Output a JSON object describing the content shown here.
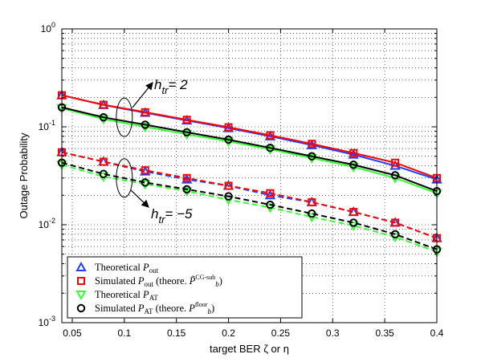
{
  "chart_data": {
    "type": "line",
    "xlabel": "target BER ζ or η",
    "ylabel": "Outage Probability",
    "xlim": [
      0.04,
      0.4
    ],
    "ylim": [
      0.001,
      1
    ],
    "yscale": "log",
    "grid": true,
    "x_ticks": [
      "0.05",
      "0.1",
      "0.15",
      "0.2",
      "0.25",
      "0.3",
      "0.35",
      "0.4"
    ],
    "x_tick_values": [
      0.05,
      0.1,
      0.15,
      0.2,
      0.25,
      0.3,
      0.35,
      0.4
    ],
    "y_ticks": [
      {
        "base": "10",
        "exp": "-3",
        "value": 0.001
      },
      {
        "base": "10",
        "exp": "-2",
        "value": 0.01
      },
      {
        "base": "10",
        "exp": "-1",
        "value": 0.1
      },
      {
        "base": "10",
        "exp": "0",
        "value": 1
      }
    ],
    "x": [
      0.04,
      0.08,
      0.12,
      0.16,
      0.2,
      0.24,
      0.28,
      0.32,
      0.36,
      0.4
    ],
    "series": [
      {
        "name": "Theoretical P_out",
        "group": "h_tr = 2",
        "color": "#1f3fff",
        "marker": "triangle-up",
        "line": "solid",
        "values": [
          0.21,
          0.167,
          0.139,
          0.116,
          0.097,
          0.08,
          0.065,
          0.052,
          0.04,
          0.029
        ]
      },
      {
        "name": "Simulated P_out (theore. P_b^CG-sub)",
        "group": "h_tr = 2",
        "color": "#ff0000",
        "marker": "square",
        "line": "solid",
        "values": [
          0.21,
          0.168,
          0.141,
          0.118,
          0.099,
          0.082,
          0.067,
          0.054,
          0.043,
          0.03
        ]
      },
      {
        "name": "Theoretical P_AT",
        "group": "h_tr = 2",
        "color": "#33ff33",
        "marker": "triangle-down",
        "line": "solid",
        "values": [
          0.155,
          0.12,
          0.1,
          0.084,
          0.071,
          0.059,
          0.048,
          0.039,
          0.03,
          0.021
        ]
      },
      {
        "name": "Simulated P_AT (theore. P_b^floor)",
        "group": "h_tr = 2",
        "color": "#000000",
        "marker": "circle",
        "line": "solid",
        "values": [
          0.158,
          0.125,
          0.105,
          0.088,
          0.074,
          0.061,
          0.05,
          0.041,
          0.032,
          0.022
        ]
      },
      {
        "name": "Theoretical P_out",
        "group": "h_tr = -5",
        "color": "#1f3fff",
        "marker": "triangle-up",
        "line": "dashed",
        "values": [
          0.055,
          0.044,
          0.035,
          0.029,
          0.025,
          0.02,
          0.017,
          0.0135,
          0.0105,
          0.0073
        ]
      },
      {
        "name": "Simulated P_out (theore. P_b^CG-sub)",
        "group": "h_tr = -5",
        "color": "#ff0000",
        "marker": "square",
        "line": "dashed",
        "values": [
          0.055,
          0.044,
          0.036,
          0.03,
          0.025,
          0.021,
          0.017,
          0.0135,
          0.0105,
          0.0073
        ]
      },
      {
        "name": "Theoretical P_AT",
        "group": "h_tr = -5",
        "color": "#33ff33",
        "marker": "triangle-down",
        "line": "dashed",
        "values": [
          0.041,
          0.031,
          0.026,
          0.022,
          0.018,
          0.015,
          0.012,
          0.0098,
          0.0075,
          0.0053
        ]
      },
      {
        "name": "Simulated P_AT (theore. P_b^floor)",
        "group": "h_tr = -5",
        "color": "#000000",
        "marker": "circle",
        "line": "dashed",
        "values": [
          0.043,
          0.033,
          0.027,
          0.023,
          0.0195,
          0.016,
          0.013,
          0.0105,
          0.008,
          0.0056
        ]
      }
    ],
    "annotations": [
      {
        "base": "h",
        "sub": "tr",
        "rest": "= 2"
      },
      {
        "base": "h",
        "sub": "tr",
        "rest": "= −5"
      }
    ],
    "legend": {
      "position": "bottom-left",
      "entries": [
        {
          "text": "Theoretical ",
          "math_base": "P",
          "math_sub": "out",
          "suffix": "",
          "color": "#1f3fff",
          "marker": "triangle-up"
        },
        {
          "text": "Simulated ",
          "math_base": "P",
          "math_sub": "out",
          "suffix": " (theore.",
          "tilde_base": "P̃",
          "tilde_sub": "b",
          "tilde_sup": "CG-sub",
          "close": ")",
          "color": "#ff0000",
          "marker": "square"
        },
        {
          "text": "Theoretical ",
          "math_base": "P",
          "math_sub": "AT",
          "suffix": "",
          "color": "#33ff33",
          "marker": "triangle-down"
        },
        {
          "text": "Simulated ",
          "math_base": "P",
          "math_sub": "AT",
          "suffix": " (theore.",
          "tilde_base": "P",
          "tilde_sub": "b",
          "tilde_sup": "floor",
          "close": ")",
          "color": "#000000",
          "marker": "circle"
        }
      ]
    }
  }
}
